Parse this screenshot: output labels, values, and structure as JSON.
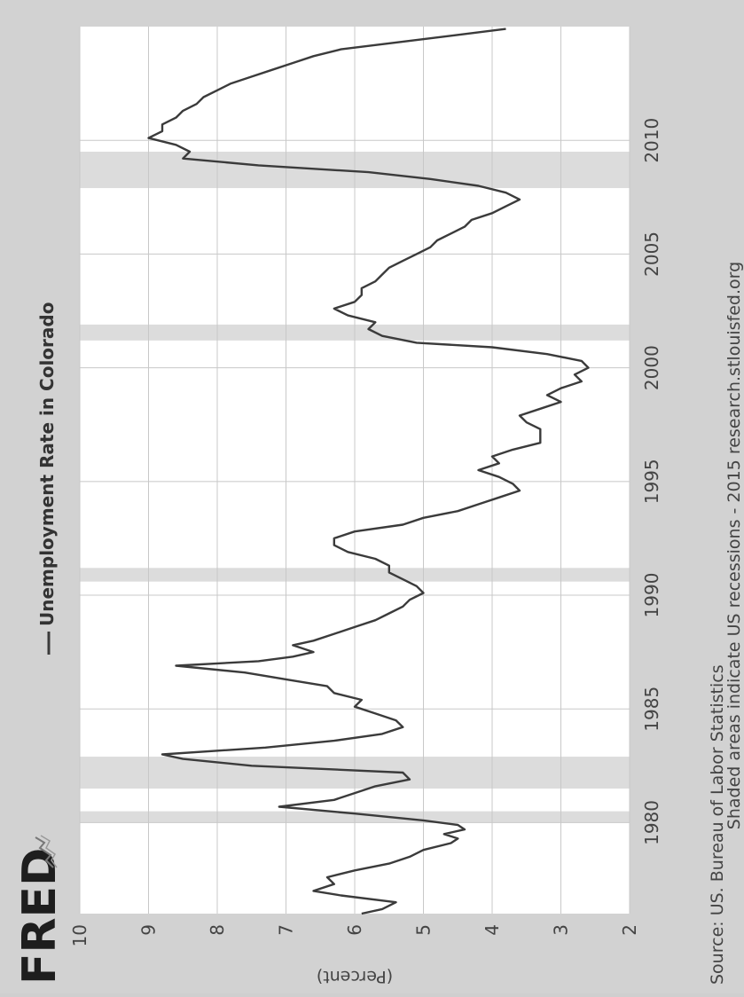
{
  "logo_text": "FRED",
  "chart_data": {
    "type": "line",
    "title": "Unemployment Rate in Colorado",
    "ylabel": "(Percent)",
    "xlabel": "",
    "xlim": [
      1976.0,
      2015.0
    ],
    "ylim": [
      2,
      10
    ],
    "x_ticks": [
      1980,
      1985,
      1990,
      1995,
      2000,
      2005,
      2010
    ],
    "y_ticks": [
      2,
      3,
      4,
      5,
      6,
      7,
      8,
      9,
      10
    ],
    "grid": true,
    "recessions": [
      [
        1980.0,
        1980.5
      ],
      [
        1981.5,
        1982.9
      ],
      [
        1990.6,
        1991.2
      ],
      [
        2001.2,
        2001.9
      ],
      [
        2007.9,
        2009.5
      ]
    ],
    "series": [
      {
        "name": "Unemployment Rate in Colorado",
        "color": "#3b3b3b",
        "x": [
          1976.0,
          1976.2,
          1976.5,
          1976.8,
          1977.0,
          1977.3,
          1977.6,
          1977.9,
          1978.2,
          1978.5,
          1978.8,
          1979.1,
          1979.3,
          1979.5,
          1979.7,
          1979.9,
          1980.1,
          1980.4,
          1980.7,
          1981.0,
          1981.3,
          1981.6,
          1981.9,
          1982.2,
          1982.5,
          1982.8,
          1983.0,
          1983.3,
          1983.6,
          1983.9,
          1984.2,
          1984.5,
          1984.8,
          1985.1,
          1985.4,
          1985.7,
          1986.0,
          1986.3,
          1986.6,
          1986.9,
          1987.1,
          1987.3,
          1987.5,
          1987.8,
          1988.0,
          1988.3,
          1988.6,
          1988.9,
          1989.2,
          1989.5,
          1989.8,
          1990.1,
          1990.4,
          1990.7,
          1991.0,
          1991.3,
          1991.6,
          1991.9,
          1992.2,
          1992.5,
          1992.8,
          1993.1,
          1993.4,
          1993.7,
          1994.0,
          1994.3,
          1994.6,
          1994.9,
          1995.2,
          1995.5,
          1995.8,
          1996.1,
          1996.4,
          1996.7,
          1997.0,
          1997.3,
          1997.6,
          1997.9,
          1998.2,
          1998.5,
          1998.8,
          1999.1,
          1999.4,
          1999.7,
          2000.0,
          2000.3,
          2000.6,
          2000.9,
          2001.1,
          2001.4,
          2001.7,
          2002.0,
          2002.3,
          2002.6,
          2002.9,
          2003.2,
          2003.5,
          2003.8,
          2004.1,
          2004.4,
          2004.7,
          2005.0,
          2005.3,
          2005.6,
          2005.9,
          2006.2,
          2006.5,
          2006.8,
          2007.1,
          2007.4,
          2007.7,
          2008.0,
          2008.3,
          2008.6,
          2008.9,
          2009.2,
          2009.5,
          2009.8,
          2010.1,
          2010.4,
          2010.7,
          2011.0,
          2011.3,
          2011.6,
          2011.9,
          2012.2,
          2012.5,
          2012.8,
          2013.1,
          2013.4,
          2013.7,
          2014.0,
          2014.3,
          2014.6,
          2014.9
        ],
        "values": [
          5.9,
          5.6,
          5.4,
          6.2,
          6.6,
          6.3,
          6.4,
          6.0,
          5.5,
          5.2,
          5.0,
          4.6,
          4.5,
          4.7,
          4.4,
          4.5,
          5.0,
          6.0,
          7.1,
          6.3,
          6.0,
          5.7,
          5.2,
          5.3,
          7.5,
          8.5,
          8.8,
          7.3,
          6.3,
          5.6,
          5.3,
          5.4,
          5.7,
          6.0,
          5.9,
          6.3,
          6.4,
          7.0,
          7.6,
          8.6,
          7.4,
          6.9,
          6.6,
          6.9,
          6.6,
          6.3,
          6.0,
          5.7,
          5.5,
          5.3,
          5.2,
          5.0,
          5.1,
          5.3,
          5.5,
          5.5,
          5.7,
          6.1,
          6.3,
          6.3,
          6.0,
          5.3,
          5.0,
          4.5,
          4.2,
          3.9,
          3.6,
          3.7,
          3.9,
          4.2,
          3.9,
          4.0,
          3.7,
          3.3,
          3.3,
          3.3,
          3.5,
          3.6,
          3.3,
          3.0,
          3.2,
          3.0,
          2.7,
          2.8,
          2.6,
          2.7,
          3.2,
          4.0,
          5.1,
          5.6,
          5.8,
          5.7,
          6.1,
          6.3,
          6.0,
          5.9,
          5.9,
          5.7,
          5.6,
          5.5,
          5.3,
          5.1,
          4.9,
          4.8,
          4.6,
          4.4,
          4.3,
          4.0,
          3.8,
          3.6,
          3.8,
          4.2,
          4.9,
          5.8,
          7.4,
          8.5,
          8.4,
          8.6,
          9.0,
          8.8,
          8.8,
          8.6,
          8.5,
          8.3,
          8.2,
          8.0,
          7.8,
          7.5,
          7.2,
          6.9,
          6.6,
          6.2,
          5.4,
          4.6,
          3.8
        ]
      }
    ]
  },
  "source_text": "Source: US. Bureau of Labor Statistics",
  "footer_text": "Shaded areas indicate US recessions - 2015 research.stlouisfed.org"
}
